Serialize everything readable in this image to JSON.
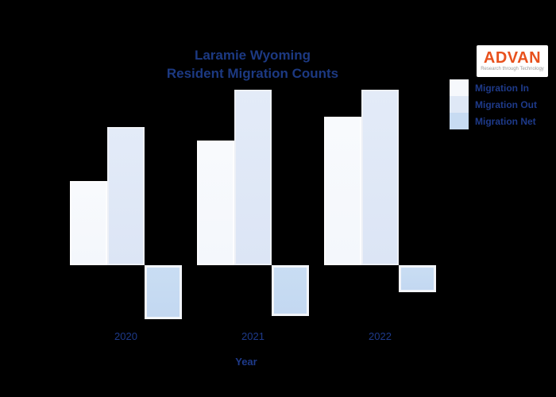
{
  "background": "#000000",
  "title": {
    "line1": "Laramie Wyoming",
    "line2": "Resident Migration Counts",
    "color": "#1c3982"
  },
  "logo": {
    "name": "ADVAN",
    "tagline": "Research through Technology",
    "accent_color": "#e8511d"
  },
  "legend": {
    "position": "top-right",
    "items": [
      {
        "label": "Migration In",
        "color": "#f6f8fc"
      },
      {
        "label": "Migration Out",
        "color": "#dfe8f6"
      },
      {
        "label": "Migration Net",
        "color": "#c7dbf2"
      }
    ]
  },
  "x_axis": {
    "title": "Year",
    "labels": [
      "2020",
      "2021",
      "2022"
    ]
  },
  "chart_data": {
    "type": "bar",
    "title": "Laramie Wyoming Resident Migration Counts",
    "categories": [
      "2020",
      "2021",
      "2022"
    ],
    "series": [
      {
        "name": "Migration In",
        "color": "#f6f8fc",
        "values": [
          106,
          157,
          187
        ]
      },
      {
        "name": "Migration Out",
        "color": "#dfe8f6",
        "values": [
          174,
          221,
          221
        ]
      },
      {
        "name": "Migration Net",
        "color": "#c7dbf2",
        "values": [
          -68,
          -64,
          -34
        ]
      }
    ],
    "xlabel": "Year",
    "ylabel": "",
    "y_axis_visible": false,
    "units": "relative bar heights; y-axis has no visible tick labels in source image",
    "ylim": [
      -80,
      230
    ],
    "grid": false,
    "legend_position": "top-right"
  }
}
